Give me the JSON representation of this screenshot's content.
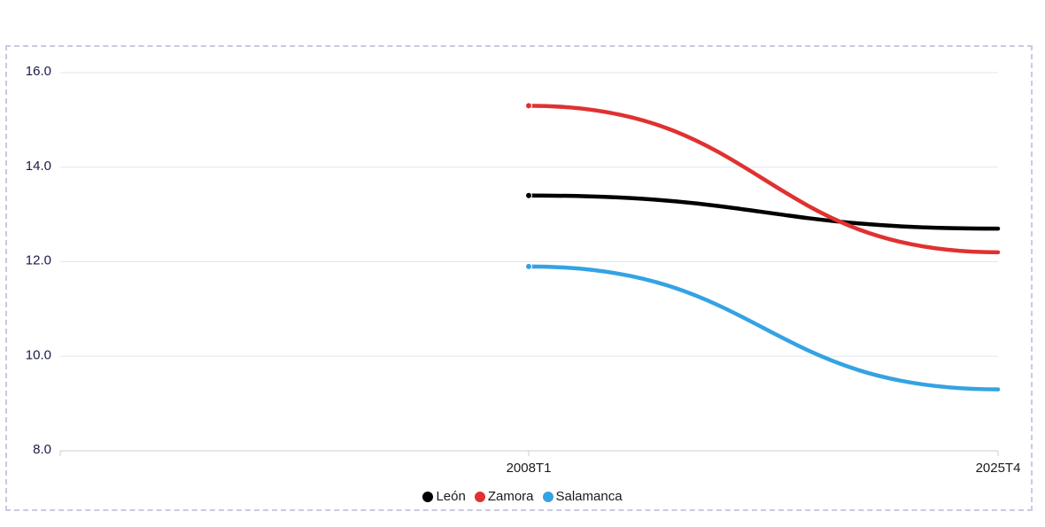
{
  "chart_data": {
    "type": "line",
    "title": "",
    "xlabel": "",
    "ylabel": "",
    "categories": [
      "2008T1",
      "2025T4"
    ],
    "x_tick_labels": [
      "2008T1",
      "2025T4"
    ],
    "y_tick_labels": [
      "8.0",
      "10.0",
      "12.0",
      "14.0",
      "16.0"
    ],
    "ylim": [
      8,
      16
    ],
    "grid": true,
    "legend_position": "bottom-center",
    "series": [
      {
        "name": "León",
        "color": "#000000",
        "values": [
          13.4,
          12.7
        ]
      },
      {
        "name": "Zamora",
        "color": "#e03131",
        "values": [
          15.3,
          12.2
        ]
      },
      {
        "name": "Salamanca",
        "color": "#34a3e3",
        "values": [
          11.9,
          9.3
        ]
      }
    ]
  }
}
